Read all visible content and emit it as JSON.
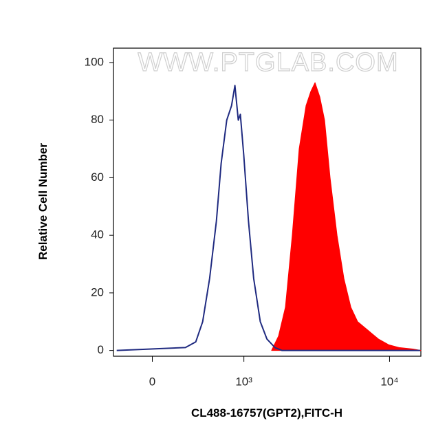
{
  "chart_data": {
    "type": "histogram-overlay",
    "watermark": "WWW.PTGLAB.COM",
    "x_label": "CL488-16757(GPT2),FITC-H",
    "y_label": "Relative Cell Number",
    "x_scale": "biexponential",
    "xlim": [
      -330,
      16200
    ],
    "ylim": [
      -2,
      105
    ],
    "xticks": [
      {
        "value": 0,
        "label": "0"
      },
      {
        "value": 1000,
        "label": "10³"
      },
      {
        "value": 10000,
        "label": "10⁴"
      }
    ],
    "yticks": [
      0,
      20,
      40,
      60,
      80,
      100
    ],
    "series": [
      {
        "color": "#1f2a80",
        "fill": false,
        "x": [
          -300,
          276,
          374,
          444,
          520,
          600,
          660,
          734,
          803,
          854,
          907,
          940,
          997,
          1082,
          1182,
          1319,
          1471,
          1678,
          1874,
          16000
        ],
        "values": [
          0,
          1,
          3,
          10,
          25,
          45,
          65,
          80,
          85,
          92,
          80,
          82,
          68,
          45,
          25,
          10,
          4,
          1,
          0,
          0
        ]
      },
      {
        "color": "#ff0000",
        "fill": true,
        "x": [
          1587,
          1774,
          1980,
          2209,
          2462,
          2742,
          2958,
          3156,
          3402,
          3666,
          3992,
          4444,
          4944,
          5503,
          6117,
          6801,
          7175,
          7565,
          8414,
          9870,
          11572,
          14306,
          16200
        ],
        "values": [
          0,
          5,
          15,
          40,
          70,
          85,
          90,
          93,
          88,
          80,
          60,
          40,
          25,
          15,
          10,
          8,
          7,
          6,
          4,
          2,
          1,
          0.5,
          0
        ]
      }
    ]
  }
}
